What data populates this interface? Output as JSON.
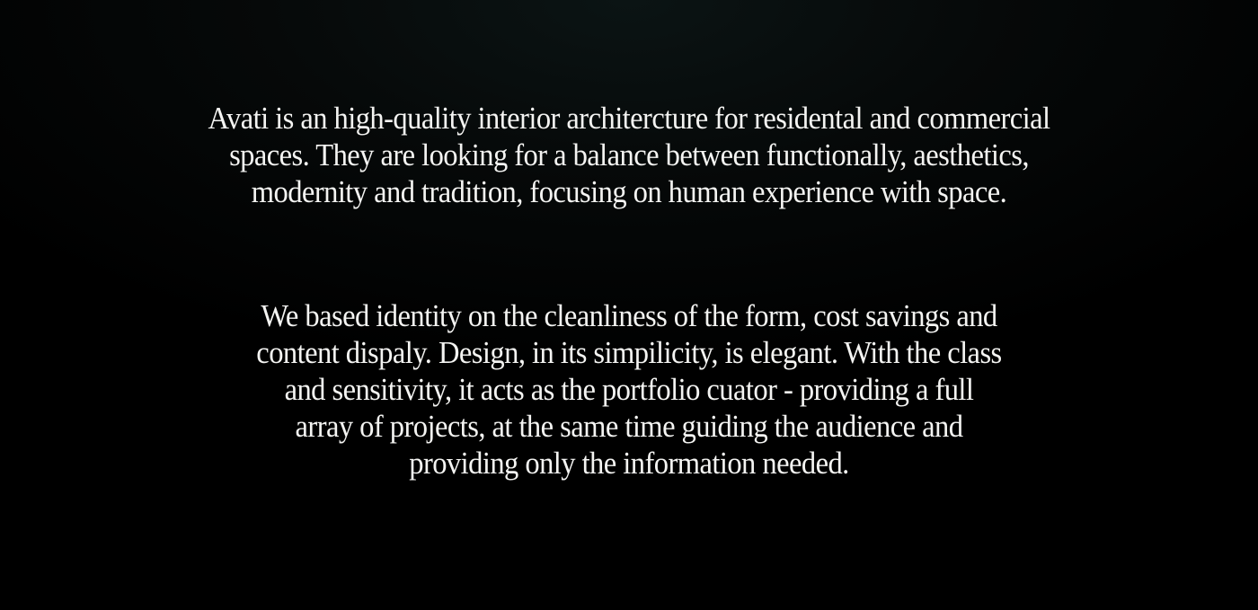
{
  "intro": {
    "lines": [
      "Avati is an high-quality interior architercture for residental and commercial",
      "spaces. They are looking for a balance between functionally, aesthetics,",
      "modernity and tradition, focusing on human experience with space."
    ]
  },
  "identity": {
    "lines": [
      "We based identity on the cleanliness of the form, cost savings and",
      "content dispaly. Design, in its simpilicity, is elegant. With the class",
      "and sensitivity, it acts as the portfolio cuator - providing a full",
      "array of projects, at the same time guiding the audience and",
      "providing only the information needed."
    ]
  },
  "colors": {
    "background": "#000000",
    "text": "#f4f4f2"
  }
}
